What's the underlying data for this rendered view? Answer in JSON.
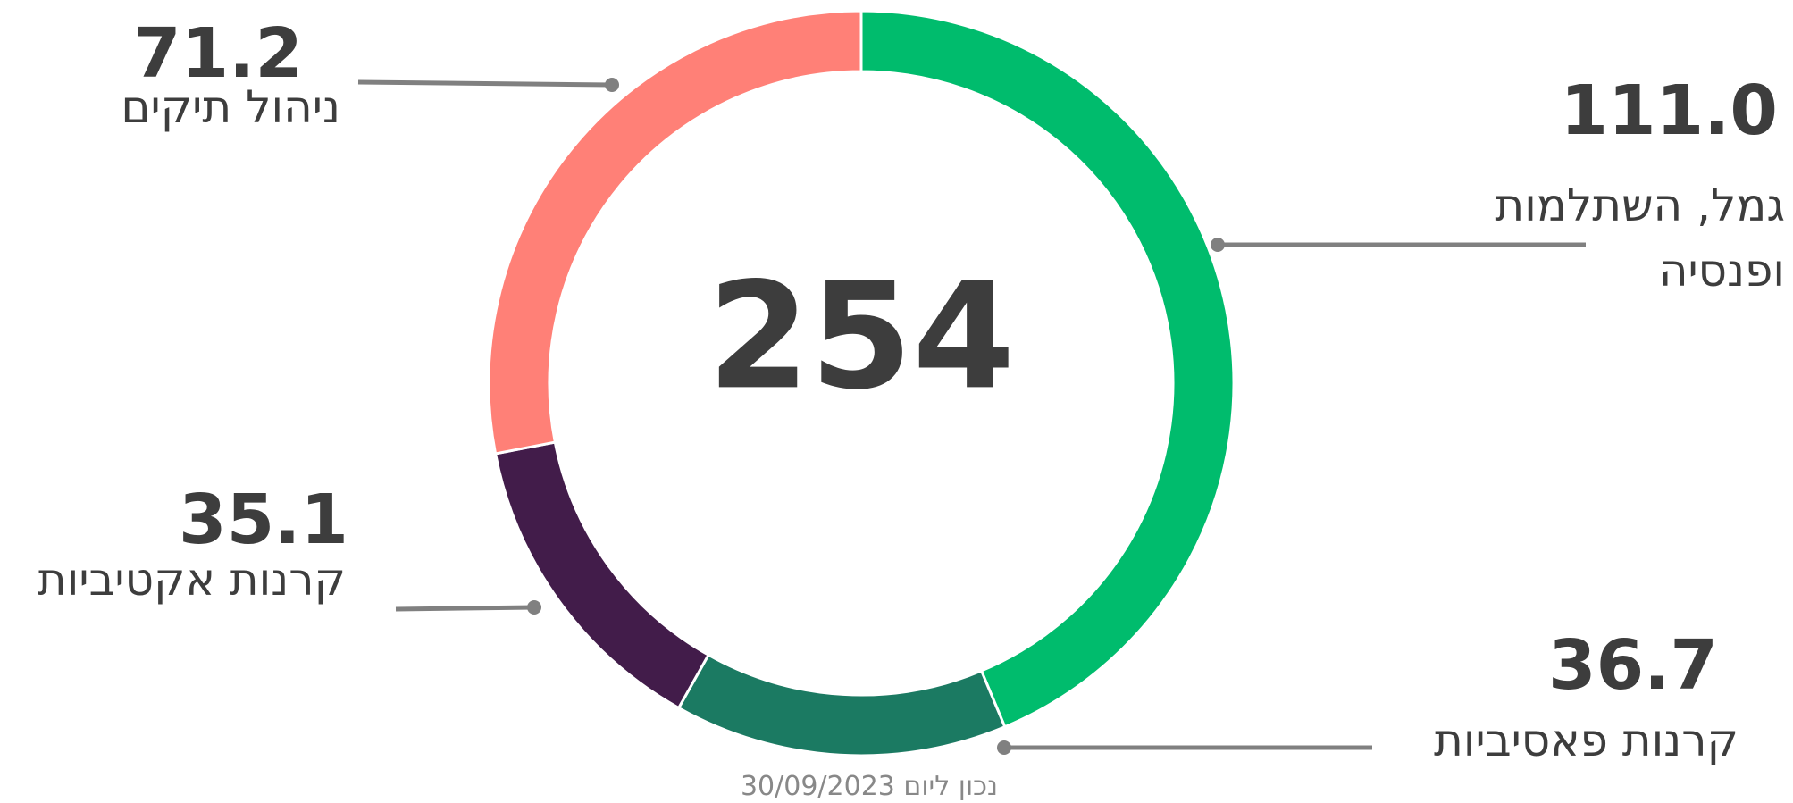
{
  "chart_data": {
    "type": "donut",
    "total": 254,
    "categories": [
      "גמל, השתלמות ופנסיה",
      "קרנות פאסיביות",
      "קרנות אקטיביות",
      "ניהול תיקים"
    ],
    "values": [
      111.0,
      36.7,
      35.1,
      71.2
    ],
    "value_labels": [
      "111.0",
      "36.7",
      "35.1",
      "71.2"
    ],
    "colors": [
      "#00bc6d",
      "#1b7a62",
      "#421c4a",
      "#ff8077"
    ],
    "footnote": "נכון ליום 30/09/2023"
  }
}
